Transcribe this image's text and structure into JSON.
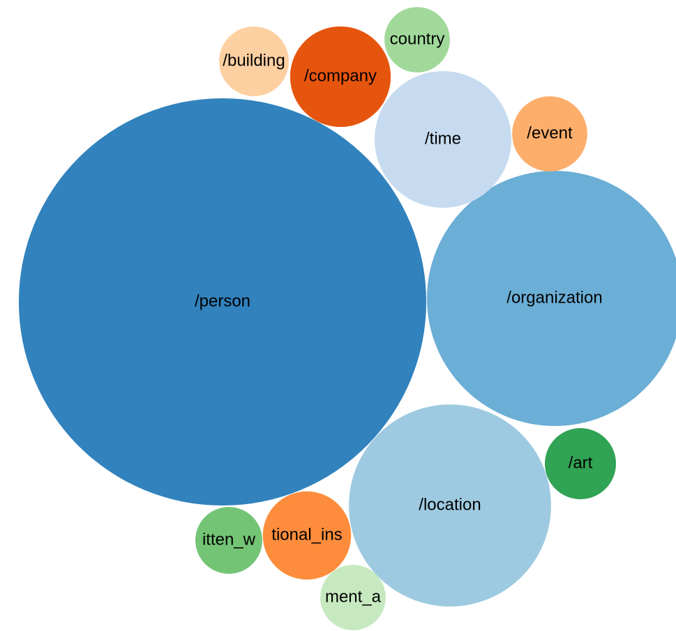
{
  "chart_data": {
    "type": "bubble",
    "categories": [
      "/person",
      "/organization",
      "/location",
      "/time",
      "/company",
      "/event",
      "/art",
      "tional_ins",
      "itten_w",
      "/building",
      "country",
      "ment_a"
    ],
    "values": [
      853,
      335,
      210,
      96,
      52,
      29,
      26,
      40,
      23,
      25,
      22,
      22
    ],
    "colors": [
      "#3182bd",
      "#6baed6",
      "#9ecae1",
      "#c6dbef",
      "#e6550d",
      "#fdae6b",
      "#31a354",
      "#fd8d3c",
      "#74c476",
      "#fdd0a2",
      "#a1d99b",
      "#c7e9c0"
    ]
  }
}
